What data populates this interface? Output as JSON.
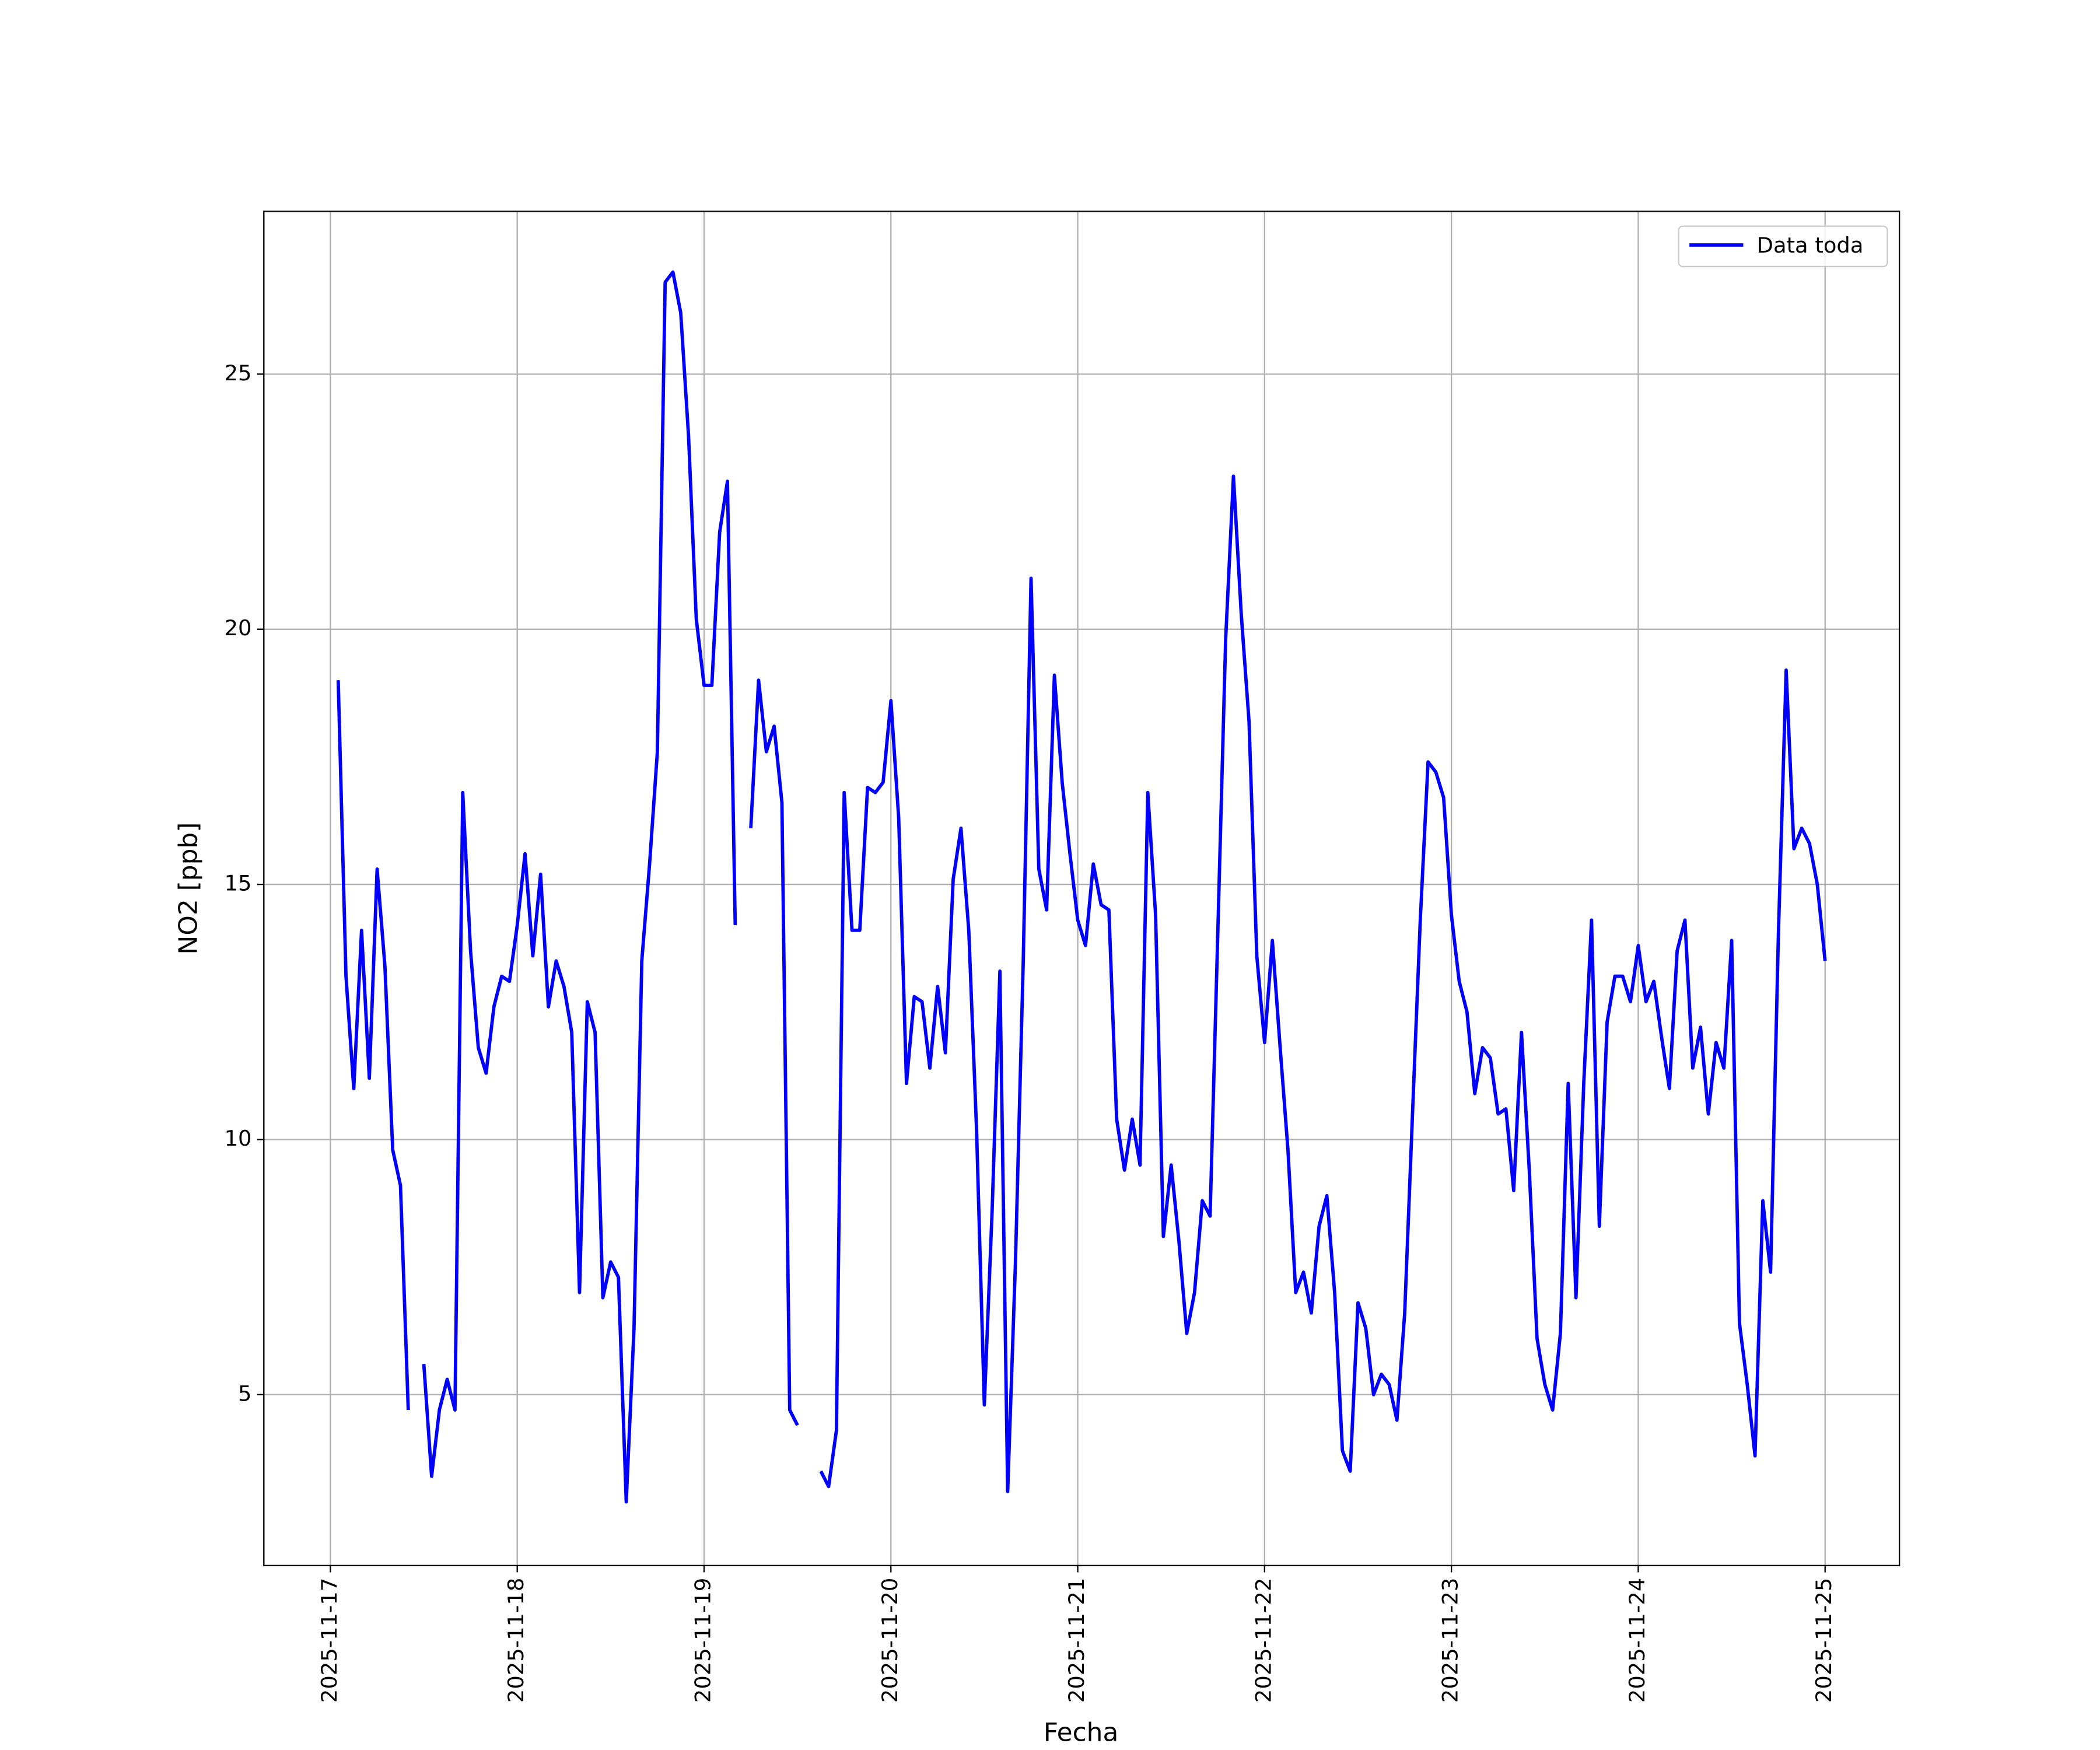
{
  "chart_data": {
    "type": "line",
    "xlabel": "Fecha",
    "ylabel": "NO2 [ppb]",
    "x": [
      "2025-11-17T01:00",
      "2025-11-17T02:00",
      "2025-11-17T03:00",
      "2025-11-17T04:00",
      "2025-11-17T05:00",
      "2025-11-17T06:00",
      "2025-11-17T07:00",
      "2025-11-17T08:00",
      "2025-11-17T09:00",
      "2025-11-17T10:00",
      "2025-11-17T11:00",
      "2025-11-17T12:00",
      "2025-11-17T13:00",
      "2025-11-17T14:00",
      "2025-11-17T15:00",
      "2025-11-17T16:00",
      "2025-11-17T17:00",
      "2025-11-17T18:00",
      "2025-11-17T19:00",
      "2025-11-17T20:00",
      "2025-11-17T21:00",
      "2025-11-17T22:00",
      "2025-11-17T23:00",
      "2025-11-18T00:00",
      "2025-11-18T01:00",
      "2025-11-18T02:00",
      "2025-11-18T03:00",
      "2025-11-18T04:00",
      "2025-11-18T05:00",
      "2025-11-18T06:00",
      "2025-11-18T07:00",
      "2025-11-18T08:00",
      "2025-11-18T09:00",
      "2025-11-18T10:00",
      "2025-11-18T11:00",
      "2025-11-18T12:00",
      "2025-11-18T13:00",
      "2025-11-18T14:00",
      "2025-11-18T15:00",
      "2025-11-18T16:00",
      "2025-11-18T17:00",
      "2025-11-18T18:00",
      "2025-11-18T19:00",
      "2025-11-18T20:00",
      "2025-11-18T21:00",
      "2025-11-18T22:00",
      "2025-11-18T23:00",
      "2025-11-19T00:00",
      "2025-11-19T01:00",
      "2025-11-19T02:00",
      "2025-11-19T03:00",
      "2025-11-19T04:00",
      "2025-11-19T05:00",
      "2025-11-19T06:00",
      "2025-11-19T07:00",
      "2025-11-19T08:00",
      "2025-11-19T09:00",
      "2025-11-19T10:00",
      "2025-11-19T11:00",
      "2025-11-19T12:00",
      "2025-11-19T13:00",
      "2025-11-19T14:00",
      "2025-11-19T15:00",
      "2025-11-19T16:00",
      "2025-11-19T17:00",
      "2025-11-19T18:00",
      "2025-11-19T19:00",
      "2025-11-19T20:00",
      "2025-11-19T21:00",
      "2025-11-19T22:00",
      "2025-11-19T23:00",
      "2025-11-20T00:00",
      "2025-11-20T01:00",
      "2025-11-20T02:00",
      "2025-11-20T03:00",
      "2025-11-20T04:00",
      "2025-11-20T05:00",
      "2025-11-20T06:00",
      "2025-11-20T07:00",
      "2025-11-20T08:00",
      "2025-11-20T09:00",
      "2025-11-20T10:00",
      "2025-11-20T11:00",
      "2025-11-20T12:00",
      "2025-11-20T13:00",
      "2025-11-20T14:00",
      "2025-11-20T15:00",
      "2025-11-20T16:00",
      "2025-11-20T17:00",
      "2025-11-20T18:00",
      "2025-11-20T19:00",
      "2025-11-20T20:00",
      "2025-11-20T21:00",
      "2025-11-20T22:00",
      "2025-11-20T23:00",
      "2025-11-21T00:00",
      "2025-11-21T01:00",
      "2025-11-21T02:00",
      "2025-11-21T03:00",
      "2025-11-21T04:00",
      "2025-11-21T05:00",
      "2025-11-21T06:00",
      "2025-11-21T07:00",
      "2025-11-21T08:00",
      "2025-11-21T09:00",
      "2025-11-21T10:00",
      "2025-11-21T11:00",
      "2025-11-21T12:00",
      "2025-11-21T13:00",
      "2025-11-21T14:00",
      "2025-11-21T15:00",
      "2025-11-21T16:00",
      "2025-11-21T17:00",
      "2025-11-21T18:00",
      "2025-11-21T19:00",
      "2025-11-21T20:00",
      "2025-11-21T21:00",
      "2025-11-21T22:00",
      "2025-11-21T23:00",
      "2025-11-22T00:00",
      "2025-11-22T01:00",
      "2025-11-22T02:00",
      "2025-11-22T03:00",
      "2025-11-22T04:00",
      "2025-11-22T05:00",
      "2025-11-22T06:00",
      "2025-11-22T07:00",
      "2025-11-22T08:00",
      "2025-11-22T09:00",
      "2025-11-22T10:00",
      "2025-11-22T11:00",
      "2025-11-22T12:00",
      "2025-11-22T13:00",
      "2025-11-22T14:00",
      "2025-11-22T15:00",
      "2025-11-22T16:00",
      "2025-11-22T17:00",
      "2025-11-22T18:00",
      "2025-11-22T19:00",
      "2025-11-22T20:00",
      "2025-11-22T21:00",
      "2025-11-22T22:00",
      "2025-11-22T23:00",
      "2025-11-23T00:00",
      "2025-11-23T01:00",
      "2025-11-23T02:00",
      "2025-11-23T03:00",
      "2025-11-23T04:00",
      "2025-11-23T05:00",
      "2025-11-23T06:00",
      "2025-11-23T07:00",
      "2025-11-23T08:00",
      "2025-11-23T09:00",
      "2025-11-23T10:00",
      "2025-11-23T11:00",
      "2025-11-23T12:00",
      "2025-11-23T13:00",
      "2025-11-23T14:00",
      "2025-11-23T15:00",
      "2025-11-23T16:00",
      "2025-11-23T17:00",
      "2025-11-23T18:00",
      "2025-11-23T19:00",
      "2025-11-23T20:00",
      "2025-11-23T21:00",
      "2025-11-23T22:00",
      "2025-11-23T23:00",
      "2025-11-24T00:00",
      "2025-11-24T01:00",
      "2025-11-24T02:00",
      "2025-11-24T03:00",
      "2025-11-24T04:00",
      "2025-11-24T05:00",
      "2025-11-24T06:00",
      "2025-11-24T07:00",
      "2025-11-24T08:00",
      "2025-11-24T09:00",
      "2025-11-24T10:00",
      "2025-11-24T11:00",
      "2025-11-24T12:00",
      "2025-11-24T13:00",
      "2025-11-24T14:00",
      "2025-11-24T15:00",
      "2025-11-24T16:00",
      "2025-11-24T17:00",
      "2025-11-24T18:00",
      "2025-11-24T19:00",
      "2025-11-24T20:00",
      "2025-11-24T21:00",
      "2025-11-24T22:00",
      "2025-11-24T23:00",
      "2025-11-25T00:00"
    ],
    "series": [
      {
        "name": "Data toda",
        "color": "#0000ff",
        "values": [
          19,
          13.2,
          11,
          14.1,
          11.2,
          15.3,
          13.4,
          9.8,
          9.1,
          4.7,
          null,
          5.6,
          3.4,
          4.7,
          5.3,
          4.7,
          16.8,
          13.7,
          11.8,
          11.3,
          12.6,
          13.2,
          13.1,
          14.2,
          15.6,
          13.6,
          15.2,
          12.6,
          13.5,
          13,
          12.1,
          7,
          12.7,
          12.1,
          6.9,
          7.6,
          7.3,
          2.9,
          6.3,
          13.5,
          15.4,
          17.6,
          26.8,
          27,
          26.2,
          23.8,
          20.2,
          18.9,
          18.9,
          21.9,
          22.9,
          14.2,
          null,
          16.1,
          19,
          17.6,
          18.1,
          16.6,
          4.7,
          4.4,
          null,
          null,
          3.5,
          3.2,
          4.3,
          16.8,
          14.1,
          14.1,
          16.9,
          16.8,
          17,
          18.6,
          16.3,
          11.1,
          12.8,
          12.7,
          11.4,
          13,
          11.7,
          15.1,
          16.1,
          14.1,
          10.2,
          4.8,
          8.6,
          13.3,
          3.1,
          7.6,
          13.5,
          21,
          15.3,
          14.5,
          19.1,
          17,
          15.6,
          14.3,
          13.8,
          15.4,
          14.6,
          14.5,
          10.4,
          9.4,
          10.4,
          9.5,
          16.8,
          14.4,
          8.1,
          9.5,
          8,
          6.2,
          7,
          8.8,
          8.5,
          14.1,
          19.8,
          23,
          20.3,
          18.2,
          13.6,
          11.9,
          13.9,
          11.8,
          9.8,
          7,
          7.4,
          6.6,
          8.3,
          8.9,
          7,
          3.9,
          3.5,
          6.8,
          6.3,
          5,
          5.4,
          5.2,
          4.5,
          6.6,
          10.5,
          14.3,
          17.4,
          17.2,
          16.7,
          14.4,
          13.1,
          12.5,
          10.9,
          11.8,
          11.6,
          10.5,
          10.6,
          9,
          12.1,
          9.4,
          6.1,
          5.2,
          4.7,
          6.2,
          11.1,
          6.9,
          11.1,
          14.3,
          8.3,
          12.3,
          13.2,
          13.2,
          12.7,
          13.8,
          12.7,
          13.1,
          12,
          11,
          13.7,
          14.3,
          11.4,
          12.2,
          10.5,
          11.9,
          11.4,
          13.9,
          6.4,
          5.2,
          3.8,
          8.8,
          7.4,
          14,
          19.2,
          15.7,
          16.1,
          15.8,
          15,
          13.5
        ]
      }
    ],
    "xlim": [
      "2025-11-16T15:27",
      "2025-11-25T09:33"
    ],
    "xticks": [
      "2025-11-17",
      "2025-11-18",
      "2025-11-19",
      "2025-11-20",
      "2025-11-21",
      "2025-11-22",
      "2025-11-23",
      "2025-11-24",
      "2025-11-25"
    ],
    "ylim": [
      1.65,
      28.19
    ],
    "yticks": [
      5,
      10,
      15,
      20,
      25
    ],
    "grid": true,
    "legend": "upper right"
  }
}
